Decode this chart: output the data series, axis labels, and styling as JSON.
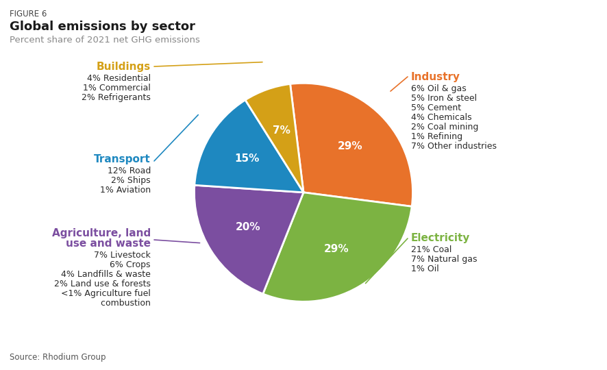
{
  "figure_label": "FIGURE 6",
  "title": "Global emissions by sector",
  "subtitle": "Percent share of 2021 net GHG emissions",
  "source": "Source: Rhodium Group",
  "sectors": [
    "Industry",
    "Electricity",
    "Agriculture, land\nuse and waste",
    "Transport",
    "Buildings"
  ],
  "values": [
    29,
    29,
    20,
    15,
    7
  ],
  "colors": [
    "#E8722A",
    "#7CB342",
    "#7B4EA0",
    "#1E88C0",
    "#D4A017"
  ],
  "pct_labels": [
    "29%",
    "29%",
    "20%",
    "15%",
    "7%"
  ],
  "startangle": 97,
  "background_color": "#FFFFFF",
  "right_labels": [
    {
      "sector": "Industry",
      "color": "#E8722A",
      "details": [
        "6% Oil & gas",
        "5% Iron & steel",
        "5% Cement",
        "4% Chemicals",
        "2% Coal mining",
        "1% Refining",
        "7% Other industries"
      ]
    },
    {
      "sector": "Electricity",
      "color": "#7CB342",
      "details": [
        "21% Coal",
        "7% Natural gas",
        "1% Oil"
      ]
    }
  ],
  "left_labels": [
    {
      "sector": "Buildings",
      "color": "#D4A017",
      "details": [
        "4% Residential",
        "1% Commercial",
        "2% Refrigerants"
      ]
    },
    {
      "sector": "Transport",
      "color": "#1E88C0",
      "details": [
        "12% Road",
        "2% Ships",
        "1% Aviation"
      ]
    },
    {
      "sector": "Agriculture, land\nuse and waste",
      "color": "#7B4EA0",
      "details": [
        "7% Livestock",
        "6% Crops",
        "4% Landfills & waste",
        "2% Land use & forests",
        "<1% Agriculture fuel",
        "     combustion"
      ]
    }
  ]
}
